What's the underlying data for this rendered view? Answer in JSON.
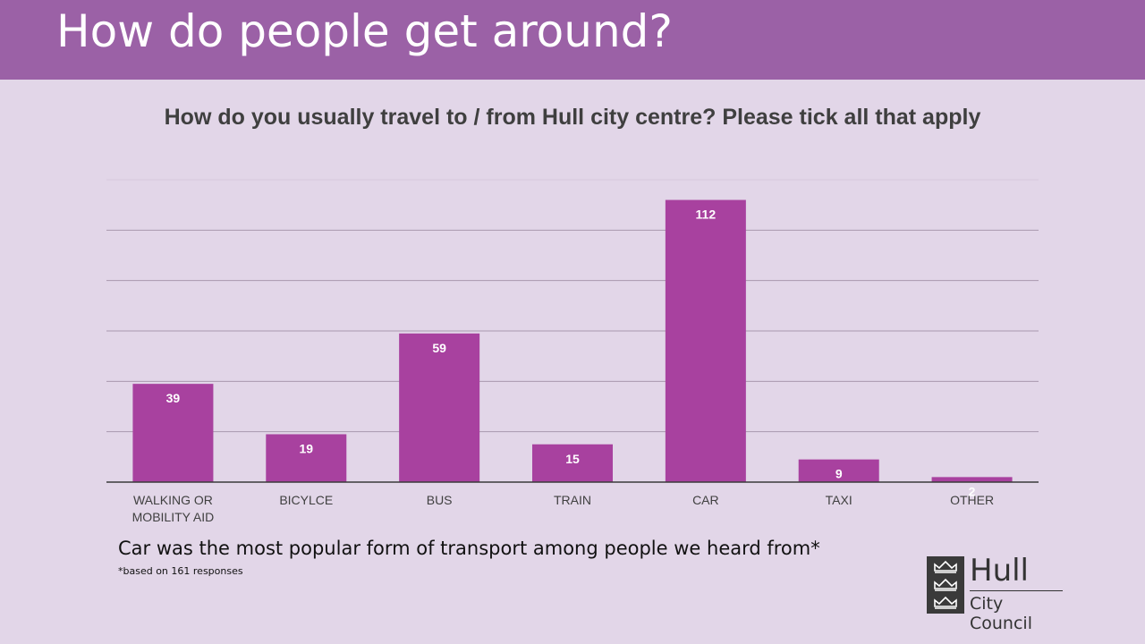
{
  "slide": {
    "heading": "How do people get around?",
    "note": "Car was the most popular form of transport among people we heard from*",
    "footnote": "*based on 161 responses"
  },
  "logo": {
    "name": "Hull",
    "subtitle": "City Council"
  },
  "colors": {
    "banner": "#9b61a6",
    "background": "#e2d6e8",
    "bar": "#a8419f"
  },
  "chart_data": {
    "type": "bar",
    "title": "How do you usually travel to / from Hull city centre?  Please tick all that apply",
    "categories": [
      "WALKING OR MOBILITY AID",
      "BICYLCE",
      "BUS",
      "TRAIN",
      "CAR",
      "TAXI",
      "OTHER"
    ],
    "values": [
      39,
      19,
      59,
      15,
      112,
      9,
      2
    ],
    "ylim": [
      0,
      120
    ],
    "grid": true,
    "data_labels": true
  }
}
